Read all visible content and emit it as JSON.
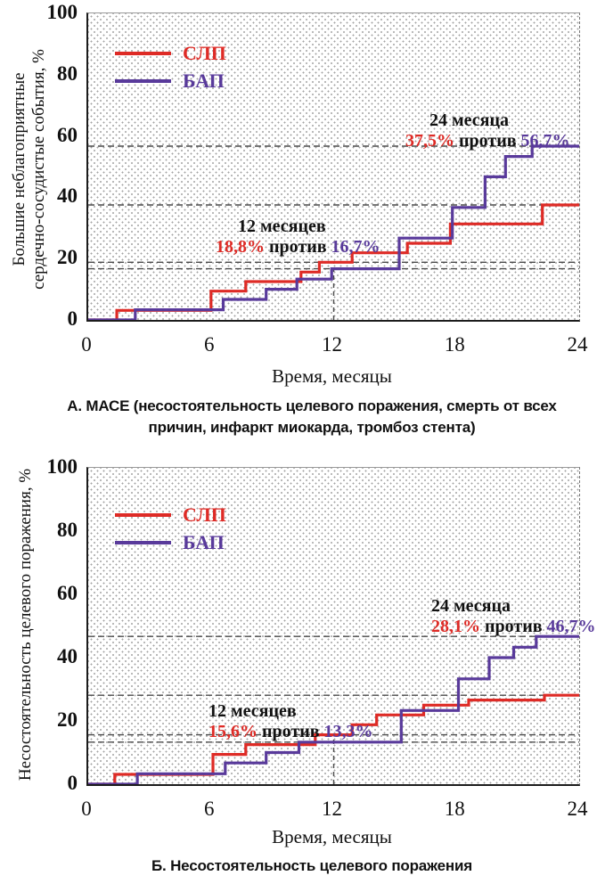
{
  "colors": {
    "slp_red": "#de2b26",
    "bap_purple": "#593a9b",
    "reference_dash_gray": "#4a4a4a",
    "axis_black": "#1c1c1c",
    "stipple_dot_gray": "#a3a3a3"
  },
  "chart_data": [
    {
      "type": "line",
      "subtype": "kaplan-meier-step-curves",
      "panel": "A",
      "caption_lines": [
        "А. МАСЕ (несостоятельность целевого поражения, смерть от всех",
        "причин, инфаркт миокарда, тромбоз стента)"
      ],
      "ylabel_lines": [
        "Большие неблагоприятные",
        "сердечно-сосудистые события, %"
      ],
      "xlabel": "Время, месяцы",
      "xlim": [
        0,
        24
      ],
      "ylim": [
        0,
        100
      ],
      "xticks": [
        "0",
        "6",
        "12",
        "18",
        "24"
      ],
      "yticks": [
        "0",
        "20",
        "40",
        "60",
        "80",
        "100"
      ],
      "legend": [
        {
          "name": "СЛП",
          "color": "#de2b26"
        },
        {
          "name": "БАП",
          "color": "#593a9b"
        }
      ],
      "legend_position": "top-left-inside",
      "grid": "stippled-dot-background",
      "series": [
        {
          "name": "СЛП",
          "color": "#de2b26",
          "steps": [
            [
              1.4,
              3.1
            ],
            [
              6.0,
              9.4
            ],
            [
              7.7,
              12.5
            ],
            [
              10.4,
              15.6
            ],
            [
              11.3,
              18.8
            ],
            [
              12.9,
              21.9
            ],
            [
              15.6,
              25.0
            ],
            [
              17.7,
              31.3
            ],
            [
              22.2,
              37.5
            ]
          ]
        },
        {
          "name": "БАП",
          "color": "#593a9b",
          "steps": [
            [
              2.3,
              3.3
            ],
            [
              6.6,
              6.7
            ],
            [
              8.7,
              10.0
            ],
            [
              10.2,
              13.3
            ],
            [
              11.9,
              16.7
            ],
            [
              15.2,
              26.7
            ],
            [
              17.8,
              36.7
            ],
            [
              19.4,
              46.7
            ],
            [
              20.4,
              53.3
            ],
            [
              21.7,
              56.7
            ]
          ]
        }
      ],
      "reference_lines_h": [
        16.7,
        18.8,
        37.5,
        56.7
      ],
      "reference_line_v": {
        "x": 12,
        "to_y": 18.8
      },
      "annotations": [
        {
          "title": "12 месяцев",
          "slp_value": "18,8%",
          "separator": "против",
          "bap_value": "16,7%"
        },
        {
          "title": "24 месяца",
          "slp_value": "37,5%",
          "separator": "против",
          "bap_value": "56,7%"
        }
      ]
    },
    {
      "type": "line",
      "subtype": "kaplan-meier-step-curves",
      "panel": "Б",
      "caption_lines": [
        "Б. Несостоятельность целевого поражения"
      ],
      "ylabel_lines": [
        "Несостоятельность целевого поражения, %"
      ],
      "xlabel": "Время, месяцы",
      "xlim": [
        0,
        24
      ],
      "ylim": [
        0,
        100
      ],
      "xticks": [
        "0",
        "6",
        "12",
        "18",
        "24"
      ],
      "yticks": [
        "0",
        "20",
        "40",
        "60",
        "80",
        "100"
      ],
      "legend": [
        {
          "name": "СЛП",
          "color": "#de2b26"
        },
        {
          "name": "БАП",
          "color": "#593a9b"
        }
      ],
      "legend_position": "top-left-inside",
      "grid": "stippled-dot-background",
      "series": [
        {
          "name": "СЛП",
          "color": "#de2b26",
          "steps": [
            [
              1.3,
              3.1
            ],
            [
              6.1,
              9.4
            ],
            [
              7.7,
              12.5
            ],
            [
              11.1,
              15.6
            ],
            [
              12.9,
              18.8
            ],
            [
              14.1,
              21.9
            ],
            [
              16.4,
              25.0
            ],
            [
              18.6,
              26.6
            ],
            [
              22.3,
              28.1
            ]
          ]
        },
        {
          "name": "БАП",
          "color": "#593a9b",
          "steps": [
            [
              2.4,
              3.3
            ],
            [
              6.7,
              6.7
            ],
            [
              8.7,
              10.0
            ],
            [
              10.3,
              13.3
            ],
            [
              15.3,
              23.3
            ],
            [
              18.1,
              33.3
            ],
            [
              19.6,
              40.0
            ],
            [
              20.8,
              43.3
            ],
            [
              21.9,
              46.7
            ]
          ]
        }
      ],
      "reference_lines_h": [
        13.3,
        15.6,
        28.1,
        46.7
      ],
      "reference_line_v": {
        "x": 12,
        "to_y": 15.6
      },
      "annotations": [
        {
          "title": "12 месяцев",
          "slp_value": "15,6%",
          "separator": "против",
          "bap_value": "13,3%"
        },
        {
          "title": "24 месяца",
          "slp_value": "28,1%",
          "separator": "против",
          "bap_value": "46,7%"
        }
      ]
    }
  ]
}
